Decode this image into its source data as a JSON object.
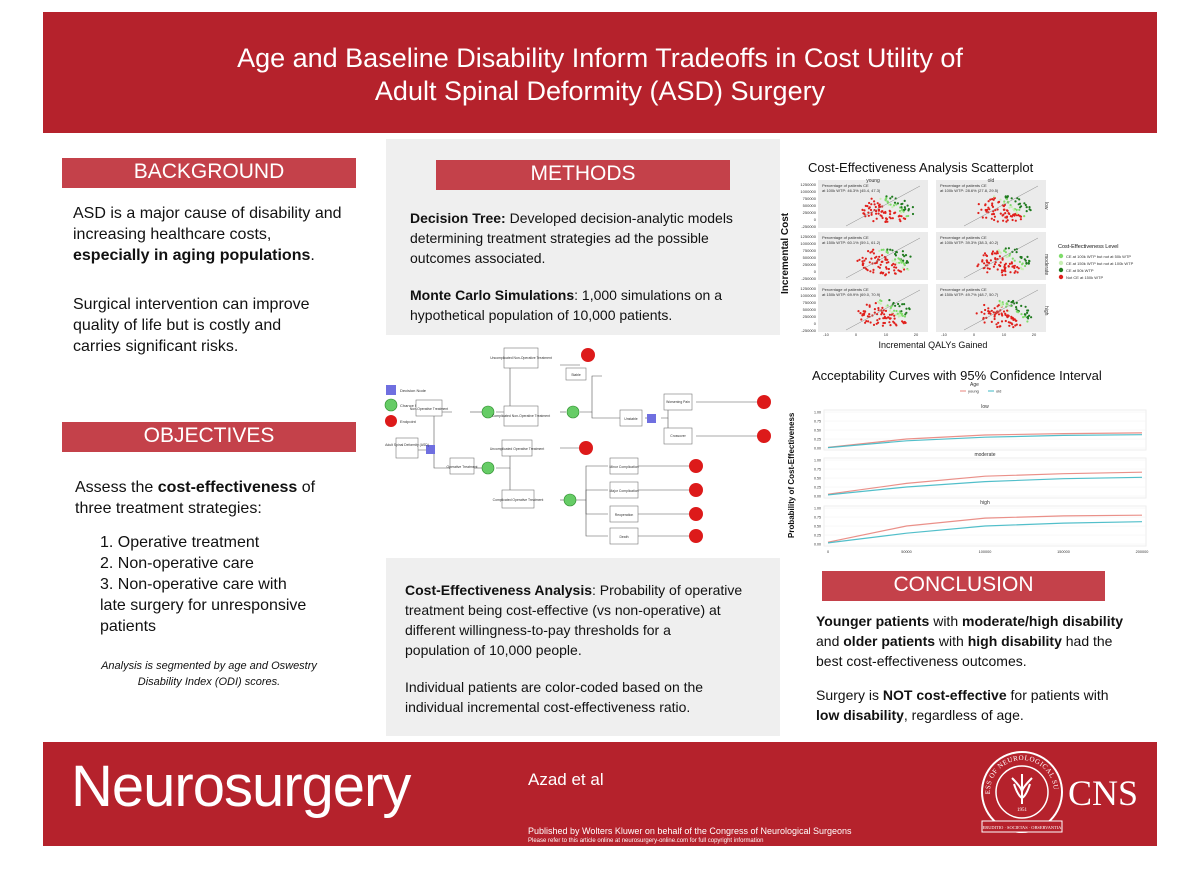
{
  "header": {
    "title_line1": "Age and Baseline Disability Inform Tradeoffs in Cost Utility of",
    "title_line2": "Adult Spinal Deformity (ASD) Surgery"
  },
  "background": {
    "title": "BACKGROUND",
    "p1_a": "ASD is a major cause of disability and",
    "p1_b": "increasing healthcare costs,",
    "p1_bold": "especially in aging populations",
    "p1_end": ".",
    "p2_a": "Surgical intervention can improve",
    "p2_b": "quality of life but is costly and",
    "p2_c": "carries significant risks."
  },
  "objectives": {
    "title": "OBJECTIVES",
    "intro_a": "Assess the ",
    "intro_bold": "cost-effectiveness",
    "intro_b": " of",
    "intro_c": "three treatment strategies:",
    "items": [
      "1. Operative treatment",
      "2. Non-operative care",
      "3. Non-operative care with",
      "late surgery for unresponsive",
      "patients"
    ],
    "note_a": "Analysis is segmented by age and Oswestry",
    "note_b": "Disability Index (ODI) scores."
  },
  "methods": {
    "title": "METHODS",
    "dt_label": "Decision Tree:",
    "dt_text_a": " Developed decision-analytic models",
    "dt_text_b": "determining treatment strategies ad the possible",
    "dt_text_c": "outcomes associated.",
    "mc_label": "Monte Carlo Simulations",
    "mc_text_a": ": 1,000 simulations on a",
    "mc_text_b": "hypothetical population of 10,000 patients.",
    "cea_label": "Cost-Effectiveness Analysis",
    "cea_text_a": ": Probability of operative",
    "cea_text_b": "treatment being cost-effective (vs non-operative) at",
    "cea_text_c": "different willingness-to-pay thresholds for a",
    "cea_text_d": "population of 10,000 people.",
    "ind_a": "Individual patients are color-coded based on the",
    "ind_b": "individual incremental cost-effectiveness ratio."
  },
  "tree": {
    "legend": [
      "Decision Node",
      "Chance Node",
      "Endpoint"
    ],
    "nodes": [
      "Adult Spinal Deformity (ASD)",
      "Non-Operative Treatment",
      "Operative Treatment",
      "Uncomplicated Non-Operative Treatment",
      "Complicated Non-Operative Treatment",
      "Stable",
      "Unstable",
      "Worsening Pain",
      "Crossover",
      "Uncomplicated Operative Treatment",
      "Complicated Operative Treatment",
      "Minor Complication",
      "Major Complication",
      "Reoperation",
      "Death"
    ]
  },
  "scatter": {
    "title": "Cost-Effectiveness Analysis Scatterplot",
    "col_labels": [
      "young",
      "old"
    ],
    "row_labels": [
      "low",
      "moderate",
      "high"
    ],
    "ylabel": "Incremental Cost",
    "xlabel": "Incremental QALYs Gained",
    "y_ticks": [
      "1250000",
      "1000000",
      "750000",
      "500000",
      "250000",
      "0",
      "-250000"
    ],
    "x_ticks": [
      "-10",
      "0",
      "10",
      "20"
    ],
    "legend_title": "Cost-Effectiveness Level",
    "legend": [
      {
        "label": "CE at 100k WTP but not at 50k WTP",
        "color": "#7fdc6a"
      },
      {
        "label": "CE at 150k WTP but not at 100k WTP",
        "color": "#c8f0b4"
      },
      {
        "label": "CE at 50k WTP",
        "color": "#1f7a1f"
      },
      {
        "label": "Not CE at 150k WTP",
        "color": "#e0201c"
      }
    ],
    "panel_notes": [
      [
        "Percentage of patients CE",
        "at 100k WTP: 46.3% (45.4, 47.3)"
      ],
      [
        "Percentage of patients CE",
        "at 100k WTP: 28.6% (27.8, 29.5)"
      ],
      [
        "Percentage of patients CE",
        "at 150k WTP: 60.1% (59.1, 61.2)"
      ],
      [
        "Percentage of patients CE",
        "at 100k WTP: 39.3% (38.3, 40.2)"
      ],
      [
        "Percentage of patients CE",
        "at 150k WTP: 69.9% (69.0, 70.9)"
      ],
      [
        "Percentage of patients CE",
        "at 150k WTP: 49.7% (48.7, 50.7)"
      ]
    ]
  },
  "accept": {
    "title": "Acceptability Curves with 95% Confidence Interval",
    "legend_title": "Age",
    "legend": [
      {
        "label": "young",
        "color": "#e8847c"
      },
      {
        "label": "old",
        "color": "#3fb8c4"
      }
    ],
    "panels": [
      "low",
      "moderate",
      "high"
    ],
    "y_ticks": [
      "1.00",
      "0.75",
      "0.50",
      "0.25",
      "0.00"
    ],
    "x_ticks": [
      "0",
      "50000",
      "100000",
      "150000",
      "200000"
    ],
    "ylabel": "Probability of Cost-Effectiveness",
    "xlabel": "Willingness to Pay ($)"
  },
  "chart_data": [
    {
      "type": "line",
      "title": "Acceptability Curves with 95% Confidence Interval",
      "xlabel": "Willingness to Pay ($)",
      "ylabel": "Probability of Cost-Effectiveness",
      "x": [
        0,
        50000,
        100000,
        150000,
        200000
      ],
      "ylim": [
        0,
        1
      ],
      "facets": [
        {
          "panel": "low",
          "series": [
            {
              "name": "young",
              "values": [
                0.02,
                0.25,
                0.36,
                0.4,
                0.42
              ]
            },
            {
              "name": "old",
              "values": [
                0.01,
                0.2,
                0.3,
                0.35,
                0.37
              ]
            }
          ]
        },
        {
          "panel": "moderate",
          "series": [
            {
              "name": "young",
              "values": [
                0.05,
                0.35,
                0.55,
                0.62,
                0.66
              ]
            },
            {
              "name": "old",
              "values": [
                0.03,
                0.25,
                0.4,
                0.48,
                0.52
              ]
            }
          ]
        },
        {
          "panel": "high",
          "series": [
            {
              "name": "young",
              "values": [
                0.05,
                0.5,
                0.72,
                0.78,
                0.8
              ]
            },
            {
              "name": "old",
              "values": [
                0.03,
                0.3,
                0.5,
                0.58,
                0.62
              ]
            }
          ]
        }
      ]
    }
  ],
  "conclusion": {
    "title": "CONCLUSION",
    "l1_b1": "Younger patients",
    "l1_n1": " with ",
    "l1_b2": "moderate/high disability",
    "l2_n1": "and ",
    "l2_b1": "older patients",
    "l2_n2": " with ",
    "l2_b2": "high disability",
    "l2_n3": " had the",
    "l3": "best cost-effectiveness outcomes.",
    "l4_a": "Surgery is ",
    "l4_b": "NOT cost-effective",
    "l4_c": " for patients with",
    "l5_b": "low disability",
    "l5_c": ", regardless of age."
  },
  "footer": {
    "brand": "Neurosurgery",
    "author": "Azad et al",
    "published": "Published by Wolters Kluwer on behalf of the Congress of Neurological Surgeons",
    "note": "Please refer to this article online at neurosurgery-online.com for full copyright information",
    "cns": "CNS",
    "seal_top": "CONGRESS OF NEUROLOGICAL SURGEONS",
    "seal_banner": "ERUDITIO · SOCIETAS · OBSERVANTIA",
    "seal_year": "1951"
  }
}
